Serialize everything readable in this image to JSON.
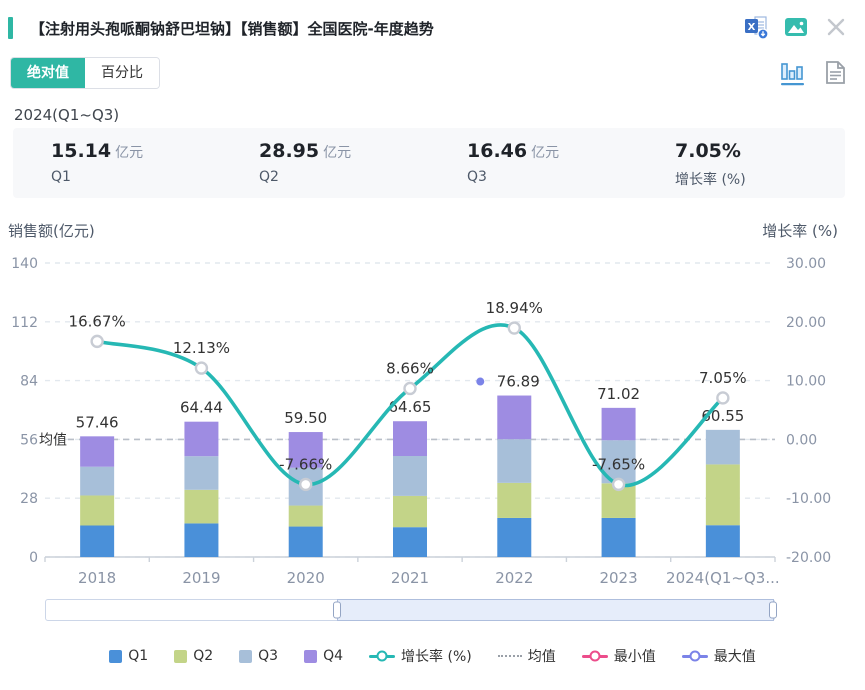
{
  "header": {
    "title": "【注射用头孢哌酮钠舒巴坦钠】【销售额】全国医院-年度趋势",
    "icons": [
      "excel-export",
      "image-export",
      "close"
    ]
  },
  "controls": {
    "absolute_label": "绝对值",
    "percent_label": "百分比",
    "view_icons": [
      "chart-view",
      "report-view"
    ],
    "active_view": "chart-view"
  },
  "period_label": "2024(Q1~Q3)",
  "stats": {
    "items": [
      {
        "value": "15.14",
        "unit": "亿元",
        "label": "Q1"
      },
      {
        "value": "28.95",
        "unit": "亿元",
        "label": "Q2"
      },
      {
        "value": "16.46",
        "unit": "亿元",
        "label": "Q3"
      },
      {
        "value": "7.05%",
        "unit": "",
        "label": "增长率 (%)"
      }
    ]
  },
  "chart_data": {
    "type": "bar",
    "subtype": "stacked-bars-with-line",
    "categories": [
      "2018",
      "2019",
      "2020",
      "2021",
      "2022",
      "2023",
      "2024(Q1~Q3..."
    ],
    "series": [
      {
        "name": "Q1",
        "color": "#4a90d9",
        "values": [
          15.0,
          16.0,
          14.5,
          14.2,
          18.6,
          18.6,
          15.14
        ]
      },
      {
        "name": "Q2",
        "color": "#c3d488",
        "values": [
          14.3,
          16.0,
          10.0,
          14.9,
          16.7,
          16.5,
          28.95
        ]
      },
      {
        "name": "Q3",
        "color": "#a7bfd9",
        "values": [
          13.7,
          16.0,
          18.0,
          19.0,
          20.8,
          20.5,
          16.46
        ]
      },
      {
        "name": "Q4",
        "color": "#9e8ce2",
        "values": [
          14.46,
          16.44,
          17.0,
          16.55,
          20.79,
          15.42,
          0
        ]
      }
    ],
    "totals": [
      "57.46",
      "64.44",
      "59.50",
      "64.65",
      "76.89",
      "71.02",
      "60.55"
    ],
    "growth_line": {
      "name": "增长率 (%)",
      "color": "#26b8b4",
      "values": [
        16.67,
        12.13,
        -7.66,
        8.66,
        18.94,
        -7.65,
        7.05
      ],
      "labels": [
        "16.67%",
        "12.13%",
        "-7.66%",
        "8.66%",
        "18.94%",
        "-7.65%",
        "7.05%"
      ]
    },
    "mean_line": {
      "label": "均值",
      "value": 56
    },
    "max_marker": {
      "category_index": 4,
      "color": "#7b83e8"
    },
    "left_axis": {
      "title": "销售额(亿元)",
      "ticks": [
        140,
        112,
        84,
        56,
        28,
        0
      ],
      "min": 0,
      "max": 140
    },
    "right_axis": {
      "title": "增长率 (%)",
      "ticks": [
        "30.00",
        "20.00",
        "10.00",
        "0.00",
        "-10.00",
        "-20.00"
      ],
      "min": -20,
      "max": 30
    },
    "grid": true,
    "legend_position": "bottom",
    "legend": [
      {
        "type": "swatch",
        "color": "#4a90d9",
        "label": "Q1"
      },
      {
        "type": "swatch",
        "color": "#c3d488",
        "label": "Q2"
      },
      {
        "type": "swatch",
        "color": "#a7bfd9",
        "label": "Q3"
      },
      {
        "type": "swatch",
        "color": "#9e8ce2",
        "label": "Q4"
      },
      {
        "type": "line",
        "color": "#26b8b4",
        "label": "增长率 (%)"
      },
      {
        "type": "dotted",
        "color": "#9aa0a8",
        "label": "均值"
      },
      {
        "type": "line",
        "color": "#ec4d8b",
        "label": "最小值"
      },
      {
        "type": "line",
        "color": "#7b83e8",
        "label": "最大值"
      }
    ]
  },
  "datazoom": {
    "start_percent": 40,
    "end_percent": 100
  }
}
